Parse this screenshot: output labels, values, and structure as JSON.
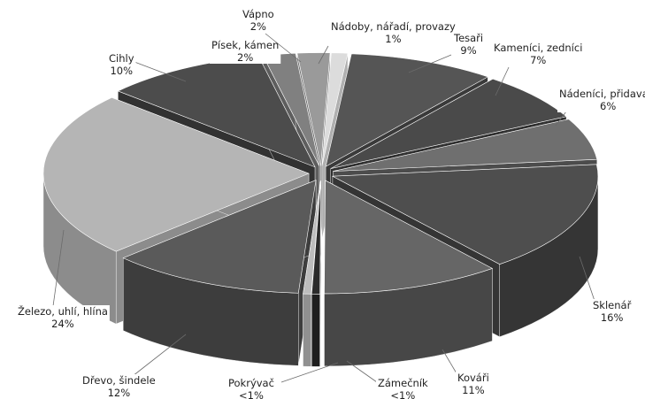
{
  "chart_data": {
    "type": "pie",
    "title": "",
    "slices": [
      {
        "label": "Nádoby, nářadí, provazy",
        "value_label": "1%",
        "value": 1,
        "top": "#dcdcdc",
        "side": "#b0b0b0"
      },
      {
        "label": "Tesaři",
        "value_label": "9%",
        "value": 9,
        "top": "#555555",
        "side": "#3a3a3a"
      },
      {
        "label": "Kameníci, zedníci",
        "value_label": "7%",
        "value": 7,
        "top": "#4a4a4a",
        "side": "#303030"
      },
      {
        "label": "Nádeníci, přidavači",
        "value_label": "6%",
        "value": 6,
        "top": "#6f6f6f",
        "side": "#4c4c4c"
      },
      {
        "label": "Sklenář",
        "value_label": "16%",
        "value": 16,
        "top": "#4e4e4e",
        "side": "#353535"
      },
      {
        "label": "Kováři",
        "value_label": "11%",
        "value": 11,
        "top": "#666666",
        "side": "#474747"
      },
      {
        "label": "Zámečník",
        "value_label": "<1%",
        "value": 0.5,
        "top": "#2b2b2b",
        "side": "#1e1e1e"
      },
      {
        "label": "Pokrývač",
        "value_label": "<1%",
        "value": 0.5,
        "top": "#bdbdbd",
        "side": "#909090"
      },
      {
        "label": "Dřevo, šindele",
        "value_label": "12%",
        "value": 12,
        "top": "#5a5a5a",
        "side": "#3d3d3d"
      },
      {
        "label": "Železo, uhlí, hlína",
        "value_label": "24%",
        "value": 24,
        "top": "#b5b5b5",
        "side": "#8c8c8c"
      },
      {
        "label": "Cihly",
        "value_label": "10%",
        "value": 10,
        "top": "#4c4c4c",
        "side": "#323232"
      },
      {
        "label": "Písek, kámen",
        "value_label": "2%",
        "value": 2,
        "top": "#808080",
        "side": "#5e5e5e"
      },
      {
        "label": "Vápno",
        "value_label": "2%",
        "value": 2,
        "top": "#9a9a9a",
        "side": "#727272"
      }
    ]
  }
}
